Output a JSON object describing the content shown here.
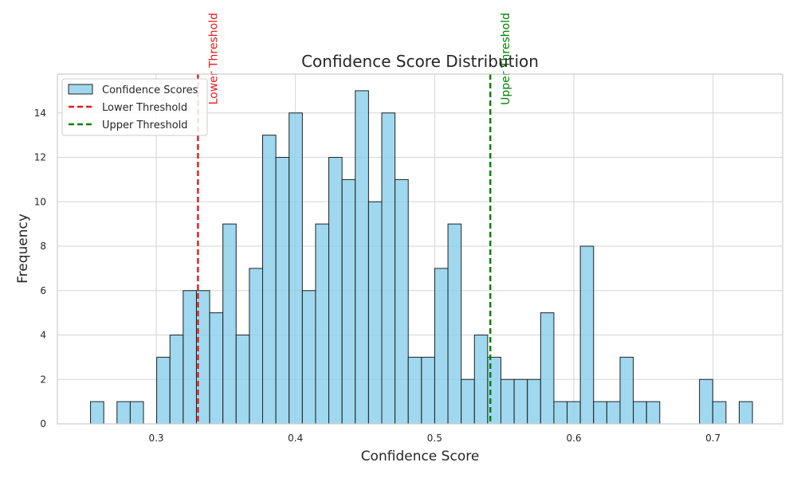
{
  "chart_data": {
    "type": "bar",
    "title": "Confidence Score Distribution",
    "xlabel": "Confidence Score",
    "ylabel": "Frequency",
    "xlim": [
      0.229,
      0.75
    ],
    "ylim": [
      0,
      15.75
    ],
    "xticks": [
      0.3,
      0.4,
      0.5,
      0.6,
      0.7
    ],
    "xtick_labels": [
      "0.3",
      "0.4",
      "0.5",
      "0.6",
      "0.7"
    ],
    "yticks": [
      0,
      2,
      4,
      6,
      8,
      10,
      12,
      14
    ],
    "ytick_labels": [
      "0",
      "2",
      "4",
      "6",
      "8",
      "10",
      "12",
      "14"
    ],
    "grid": true,
    "legend_position": "top-left",
    "series": [
      {
        "name": "Confidence Scores",
        "kind": "histogram",
        "bin_start": 0.2528,
        "bin_width": 0.00951,
        "counts": [
          1,
          0,
          1,
          1,
          0,
          3,
          4,
          6,
          6,
          5,
          9,
          4,
          7,
          13,
          12,
          14,
          6,
          9,
          12,
          11,
          15,
          10,
          14,
          11,
          3,
          3,
          7,
          9,
          2,
          4,
          3,
          2,
          2,
          2,
          5,
          1,
          1,
          8,
          1,
          1,
          3,
          1,
          1,
          0,
          0,
          0,
          2,
          1,
          0,
          1
        ],
        "color": "#87ceeb",
        "edge_color": "#222222"
      }
    ],
    "thresholds": [
      {
        "name": "Lower Threshold",
        "label": "Lower Threshold",
        "x": 0.33,
        "color": "#e31a1c"
      },
      {
        "name": "Upper Threshold",
        "label": "Upper Threshold",
        "x": 0.54,
        "color": "#008000"
      }
    ],
    "legend": [
      "Confidence Scores",
      "Lower Threshold",
      "Upper Threshold"
    ]
  }
}
